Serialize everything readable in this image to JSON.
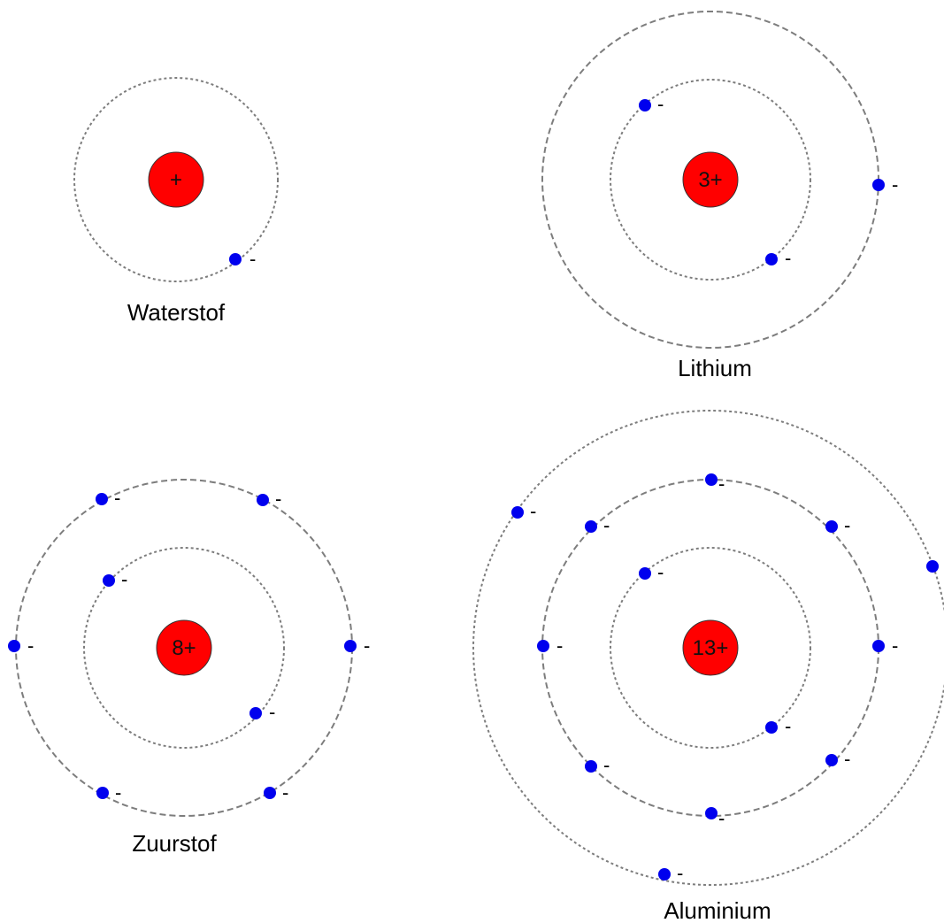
{
  "colors": {
    "nucleus": "#ff0000",
    "electron": "#0000ee",
    "orbit": "#7d7d7d"
  },
  "electron_charge": "-",
  "atoms": [
    {
      "name": "Waterstof",
      "nucleus_charge": "+",
      "shells": [
        {
          "style": "dotted",
          "electron_count": 1
        }
      ]
    },
    {
      "name": "Lithium",
      "nucleus_charge": "3+",
      "shells": [
        {
          "style": "dotted",
          "electron_count": 2
        },
        {
          "style": "dashed",
          "electron_count": 1
        }
      ]
    },
    {
      "name": "Zuurstof",
      "nucleus_charge": "8+",
      "shells": [
        {
          "style": "dotted",
          "electron_count": 2
        },
        {
          "style": "dashed",
          "electron_count": 6
        }
      ]
    },
    {
      "name": "Aluminium",
      "nucleus_charge": "13+",
      "shells": [
        {
          "style": "dotted",
          "electron_count": 2
        },
        {
          "style": "dashed",
          "electron_count": 8
        },
        {
          "style": "dotted",
          "electron_count": 3
        }
      ]
    }
  ]
}
